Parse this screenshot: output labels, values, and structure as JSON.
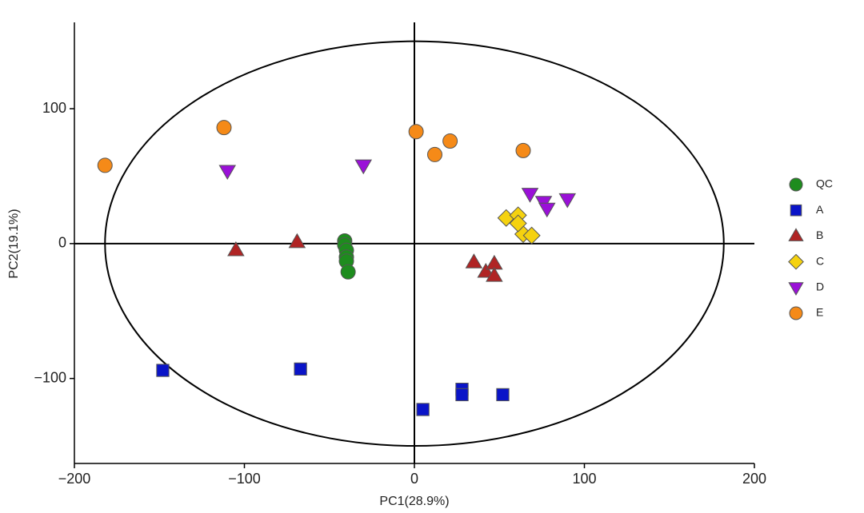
{
  "chart_data": {
    "type": "scatter",
    "x_label": "PC1(28.9%)",
    "y_label": "PC2(19.1%)",
    "xlim": [
      -200,
      200
    ],
    "ylim": [
      -163,
      164
    ],
    "xticks": [
      {
        "value": -200,
        "label": "−200"
      },
      {
        "value": -100,
        "label": "−100"
      },
      0,
      100,
      200
    ],
    "yticks": [
      {
        "value": -100,
        "label": "−100"
      },
      0,
      100
    ],
    "hline": 0,
    "vline": 0,
    "ellipse": {
      "center": [
        0,
        0
      ],
      "radii": [
        182,
        150
      ]
    },
    "legend": "right",
    "series": [
      {
        "name": "QC",
        "color": "#1e8c1e",
        "marker": "circle",
        "x": [
          -41,
          -41,
          -40,
          -40,
          -40,
          -39
        ],
        "y": [
          2,
          -1,
          -5,
          -10,
          -13,
          -21
        ]
      },
      {
        "name": "A",
        "color": "#0a14c8",
        "marker": "square",
        "x": [
          -148,
          -67,
          5,
          28,
          28,
          52
        ],
        "y": [
          -94,
          -93,
          -123,
          -108,
          -112,
          -112
        ]
      },
      {
        "name": "B",
        "color": "#b02424",
        "marker": "triangle-up",
        "x": [
          -105,
          -69,
          35,
          42,
          47,
          47
        ],
        "y": [
          -5,
          1,
          -14,
          -21,
          -15,
          -24
        ]
      },
      {
        "name": "C",
        "color": "#f5d20f",
        "marker": "diamond",
        "x": [
          54,
          61,
          64,
          69,
          61
        ],
        "y": [
          19,
          21,
          7,
          6,
          15
        ]
      },
      {
        "name": "D",
        "color": "#9a10d8",
        "marker": "triangle-down",
        "x": [
          -110,
          -30,
          68,
          76,
          78,
          90
        ],
        "y": [
          54,
          58,
          37,
          31,
          26,
          33
        ]
      },
      {
        "name": "E",
        "color": "#f58a18",
        "marker": "circle",
        "x": [
          -182,
          -112,
          1,
          12,
          21,
          64
        ],
        "y": [
          58,
          86,
          83,
          66,
          76,
          69
        ]
      }
    ]
  }
}
